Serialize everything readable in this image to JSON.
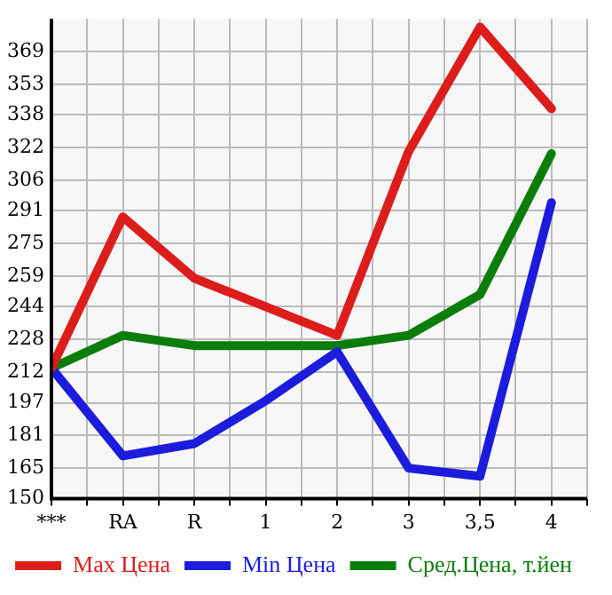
{
  "chart_data": {
    "type": "line",
    "categories": [
      "***",
      "RA",
      "R",
      "1",
      "2",
      "3",
      "3,5",
      "4"
    ],
    "series": [
      {
        "name": "Max Цена",
        "color": "#dd1c1c",
        "values": [
          214,
          288,
          258,
          244,
          230,
          320,
          381,
          341
        ]
      },
      {
        "name": "Min Цена",
        "color": "#1c1cdd",
        "values": [
          214,
          171,
          177,
          198,
          222,
          165,
          161,
          295
        ]
      },
      {
        "name": "Сред.Цена, т.йен",
        "color": "#0a7d0a",
        "values": [
          214,
          230,
          225,
          225,
          225,
          230,
          250,
          319
        ]
      }
    ],
    "ylim": [
      150,
      385
    ],
    "yticks": [
      150,
      165,
      181,
      197,
      212,
      228,
      244,
      259,
      275,
      291,
      306,
      322,
      338,
      353,
      369
    ],
    "grid": true,
    "legend": "bottom",
    "marker": "none",
    "line_style": "solid"
  }
}
